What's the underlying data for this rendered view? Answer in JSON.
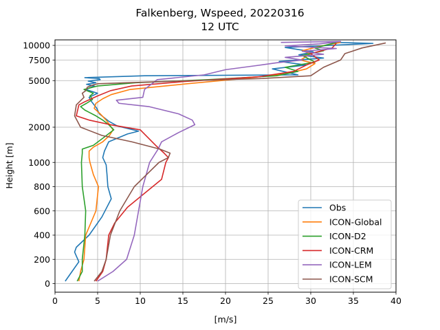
{
  "chart_data": {
    "type": "line",
    "title": "Falkenberg, Wspeed, 20220316",
    "subtitle": "12 UTC",
    "xlabel": "[m/s]",
    "ylabel": "Height [m]",
    "xlim": [
      0,
      40
    ],
    "x_ticks": [
      0,
      5,
      10,
      15,
      20,
      25,
      30,
      35,
      40
    ],
    "y_ticks": [
      0,
      200,
      400,
      600,
      800,
      1000,
      2000,
      5000,
      7500,
      10000
    ],
    "y_scale": "piecewise-log (linear 0-1000 m, logarithmic above)",
    "grid": true,
    "legend_position": "lower-right",
    "series": [
      {
        "name": "Obs",
        "color": "#1f77b4",
        "x": [
          1.2,
          2.0,
          2.8,
          2.3,
          2.5,
          4.0,
          5.5,
          6.6,
          6.2,
          6.1,
          6.0,
          5.6,
          5.8,
          6.3,
          8.5,
          9.8,
          7.3,
          6.3,
          5.2,
          4.9,
          4.3,
          4.0,
          5.0,
          3.6,
          4.6,
          3.7,
          4.8,
          3.9,
          5.3,
          5.2,
          3.5,
          10.5,
          28.5,
          25.5,
          29.5,
          26.3,
          31.5,
          28.6,
          30.3,
          27.0,
          37.3,
          33.0
        ],
        "y": [
          20,
          100,
          180,
          260,
          300,
          400,
          550,
          700,
          800,
          900,
          980,
          1100,
          1250,
          1500,
          1750,
          1850,
          2050,
          2250,
          2600,
          2900,
          3300,
          3600,
          3900,
          4200,
          4500,
          4650,
          4800,
          4950,
          5100,
          5200,
          5300,
          5500,
          5600,
          6300,
          6800,
          7300,
          7800,
          8300,
          8800,
          9600,
          10400,
          10600
        ]
      },
      {
        "name": "ICON-Global",
        "color": "#ff7f0e",
        "x": [
          2.8,
          3.0,
          3.4,
          3.6,
          4.8,
          5.1,
          4.5,
          4.1,
          4.0,
          4.0,
          4.5,
          5.6,
          6.4,
          6.8,
          6.4,
          6.0,
          5.3,
          4.6,
          4.8,
          5.6,
          6.6,
          8.8,
          15.5,
          22.0,
          27.0,
          29.5,
          30.5,
          28.8,
          30.0,
          29.0,
          31.0,
          33.5
        ],
        "y": [
          20,
          100,
          200,
          400,
          600,
          800,
          900,
          1000,
          1100,
          1250,
          1350,
          1500,
          1700,
          1900,
          2100,
          2300,
          2600,
          2900,
          3200,
          3500,
          3800,
          4200,
          4700,
          5200,
          5700,
          6300,
          7000,
          7500,
          8500,
          9000,
          9800,
          10600
        ]
      },
      {
        "name": "ICON-D2",
        "color": "#2ca02c",
        "x": [
          2.6,
          3.2,
          3.2,
          3.5,
          3.6,
          3.2,
          3.1,
          3.2,
          3.2,
          4.5,
          5.8,
          6.9,
          6.3,
          5.6,
          4.8,
          3.5,
          3.0,
          3.7,
          4.4,
          4.1,
          4.5,
          3.4,
          5.0,
          9.5,
          18.0,
          26.0,
          28.5,
          27.0,
          30.5,
          29.0,
          31.5,
          30.5,
          33.0
        ],
        "y": [
          20,
          100,
          200,
          400,
          600,
          800,
          1000,
          1200,
          1300,
          1400,
          1650,
          1900,
          2100,
          2300,
          2500,
          2800,
          3000,
          3200,
          3450,
          3700,
          3900,
          4200,
          4500,
          4800,
          5100,
          5500,
          6000,
          6500,
          7200,
          8200,
          9000,
          9500,
          10600
        ]
      },
      {
        "name": "ICON-CRM",
        "color": "#d62728",
        "x": [
          4.8,
          5.6,
          6.0,
          6.3,
          7.0,
          8.5,
          12.5,
          13.0,
          13.3,
          12.8,
          11.8,
          10.0,
          6.5,
          4.0,
          2.5,
          2.8,
          3.5,
          5.0,
          6.5,
          9.0,
          15.0,
          24.0,
          28.0,
          29.5,
          31.0,
          30.0,
          32.5,
          33.0
        ],
        "y": [
          20,
          100,
          200,
          400,
          500,
          630,
          860,
          1000,
          1100,
          1200,
          1400,
          1900,
          2100,
          2300,
          2500,
          3100,
          3300,
          3700,
          4100,
          4500,
          4900,
          5400,
          6000,
          6800,
          7500,
          8500,
          9500,
          10400
        ]
      },
      {
        "name": "ICON-LEM",
        "color": "#9467bd",
        "x": [
          5.0,
          6.8,
          8.4,
          9.3,
          9.8,
          10.3,
          11.1,
          12.1,
          12.5,
          14.5,
          16.4,
          16.1,
          14.5,
          11.0,
          7.5,
          7.2,
          10.3,
          10.5,
          12.0,
          17.5,
          20.0,
          23.5,
          26.0,
          29.0,
          27.0,
          31.5,
          29.0,
          33.0,
          27.0,
          31.0,
          33.5,
          26.5
        ],
        "y": [
          20,
          100,
          200,
          400,
          600,
          800,
          1000,
          1300,
          1500,
          1800,
          2100,
          2300,
          2600,
          3000,
          3200,
          3400,
          3600,
          4200,
          5100,
          5600,
          6200,
          6700,
          7100,
          7500,
          7900,
          8400,
          8900,
          9400,
          9900,
          10300,
          10800,
          10600
        ]
      },
      {
        "name": "ICON-SCM",
        "color": "#8c564b",
        "x": [
          4.6,
          5.5,
          6.0,
          6.5,
          7.6,
          9.3,
          12.2,
          13.3,
          13.5,
          12.3,
          9.0,
          5.5,
          3.0,
          2.3,
          2.5,
          3.4,
          3.2,
          3.6,
          3.8,
          4.5,
          5.0,
          8.5,
          16.0,
          24.0,
          30.0,
          31.5,
          33.5,
          34.0,
          36.0,
          38.8
        ],
        "y": [
          20,
          100,
          200,
          400,
          600,
          800,
          1000,
          1100,
          1200,
          1300,
          1500,
          1700,
          2000,
          2500,
          3100,
          3600,
          3900,
          4100,
          4400,
          4600,
          4700,
          4800,
          5000,
          5200,
          5500,
          6500,
          7500,
          8500,
          9500,
          10500
        ]
      }
    ]
  }
}
